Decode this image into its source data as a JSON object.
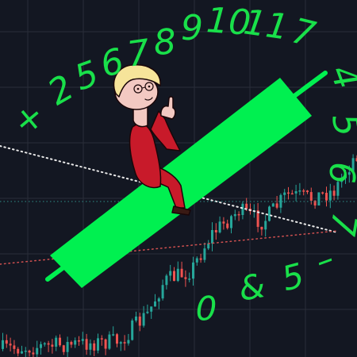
{
  "colors": {
    "background": "#131722",
    "grid": "#2a2e39",
    "up_candle": "#26a69a",
    "down_candle": "#ef5350",
    "big_candle": "#00f050",
    "handwriting": "#19e04a",
    "trend_white": "#e8e8e8",
    "trend_red": "#d05050",
    "trend_teal": "#2f8f88",
    "suit": "#c81a2a",
    "skin": "#f3c9c2",
    "hair": "#f6e49a"
  },
  "icons": {
    "figure": "cartoon-man-pointing-up-icon",
    "big_candle": "giant-green-candle-icon"
  },
  "scribbles": {
    "arc": [
      "+",
      "2",
      "5",
      "6",
      "7",
      "8",
      "9",
      "10",
      "11",
      "7",
      "4",
      "5",
      "6",
      "7"
    ],
    "bottom": [
      "0",
      "&",
      "5",
      "–"
    ]
  }
}
